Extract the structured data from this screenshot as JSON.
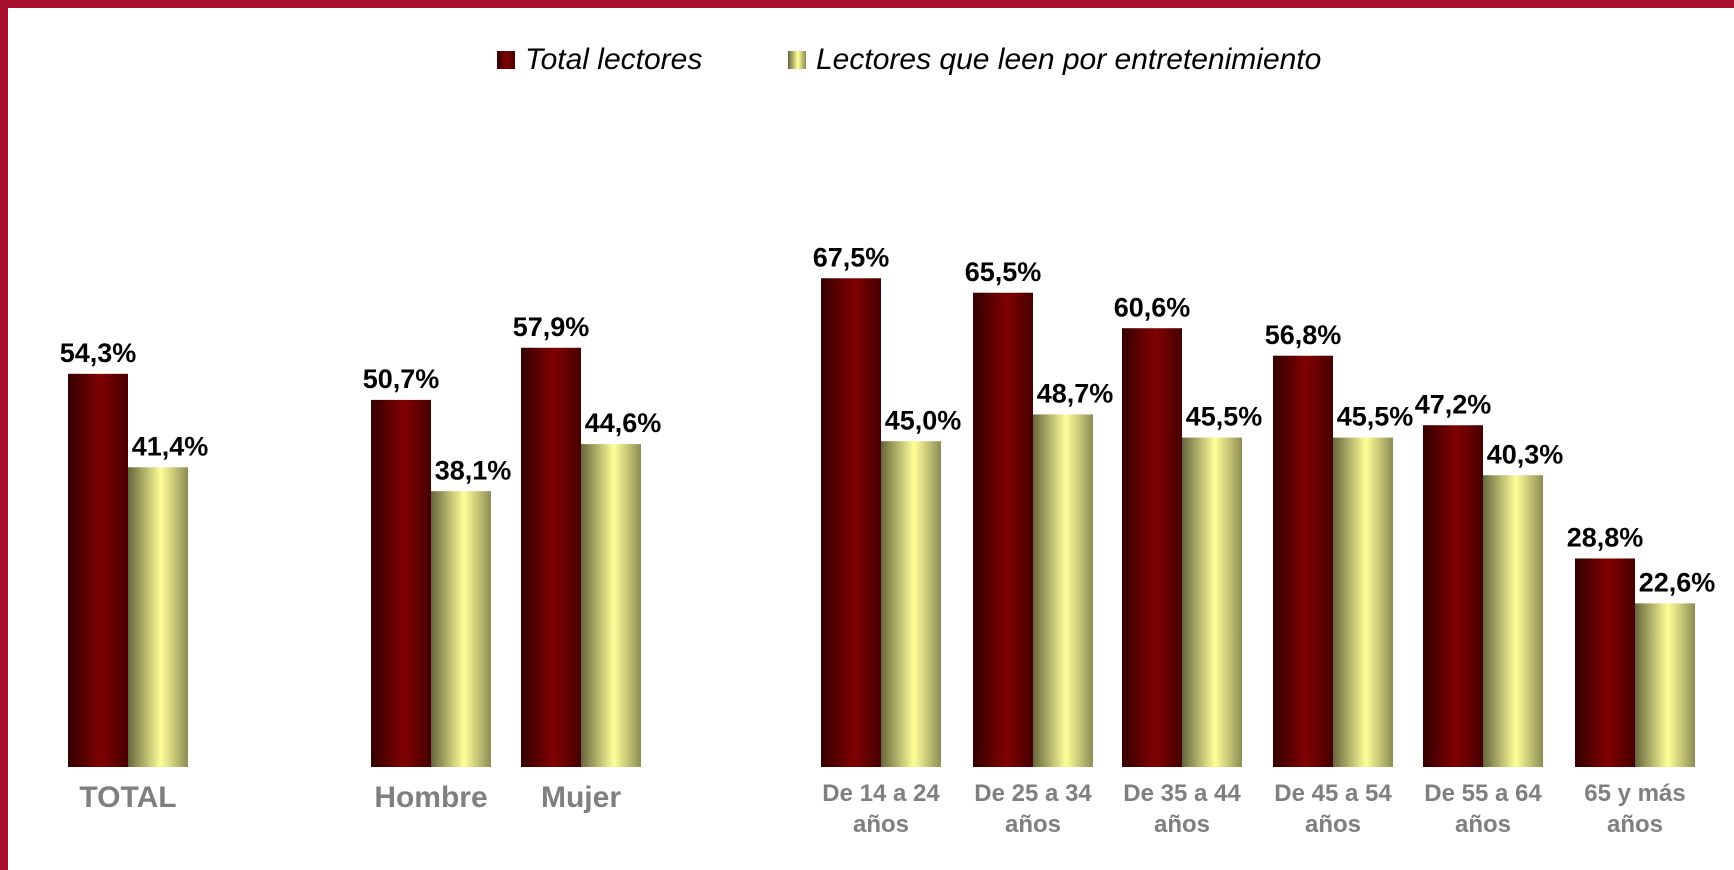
{
  "chart_data": {
    "type": "bar",
    "categories": [
      "TOTAL",
      "Hombre",
      "Mujer",
      "De 14 a 24 años",
      "De 25 a 34 años",
      "De 35 a 44 años",
      "De 45 a 54 años",
      "De 55 a 64 años",
      "65 y más años"
    ],
    "series": [
      {
        "name": "Total lectores",
        "color": "#800000",
        "values": [
          54.3,
          50.7,
          57.9,
          67.5,
          65.5,
          60.6,
          56.8,
          47.2,
          28.8
        ],
        "value_labels": [
          "54,3%",
          "50,7%",
          "57,9%",
          "67,5%",
          "65,5%",
          "60,6%",
          "56,8%",
          "47,2%",
          "28,8%"
        ]
      },
      {
        "name": "Lectores que leen por entretenimiento",
        "color": "#ffff99",
        "values": [
          41.4,
          38.1,
          44.6,
          45.0,
          48.7,
          45.5,
          45.5,
          40.3,
          22.6
        ],
        "value_labels": [
          "41,4%",
          "38,1%",
          "44,6%",
          "45,0%",
          "48,7%",
          "45,5%",
          "45,5%",
          "40,3%",
          "22,6%"
        ]
      }
    ]
  }
}
